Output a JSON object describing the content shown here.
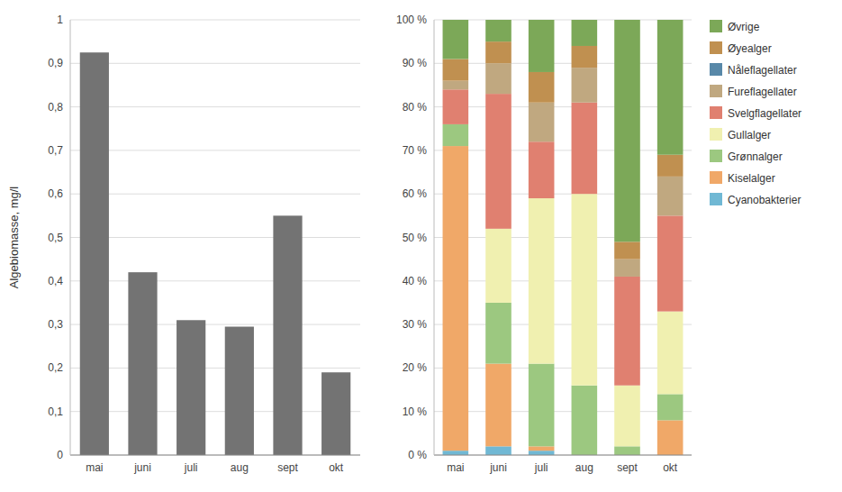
{
  "chart_data": [
    {
      "type": "bar",
      "ylabel": "Algebiomasse, mg/l",
      "categories": [
        "mai",
        "juni",
        "juli",
        "aug",
        "sept",
        "okt"
      ],
      "values": [
        0.925,
        0.42,
        0.31,
        0.295,
        0.55,
        0.19
      ],
      "color": "#737373",
      "ylim": [
        0,
        1
      ],
      "yticks": [
        0,
        {
          "value": 0.1,
          "label": "0,1"
        },
        {
          "value": 0.2,
          "label": "0,2"
        },
        {
          "value": 0.3,
          "label": "0,3"
        },
        {
          "value": 0.4,
          "label": "0,4"
        },
        {
          "value": 0.5,
          "label": "0,5"
        },
        {
          "value": 0.6,
          "label": "0,6"
        },
        {
          "value": 0.7,
          "label": "0,7"
        },
        {
          "value": 0.8,
          "label": "0,8"
        },
        {
          "value": 0.9,
          "label": "0,9"
        },
        1
      ],
      "grid": true
    },
    {
      "type": "bar",
      "stacked": true,
      "categories": [
        "mai",
        "juni",
        "juli",
        "aug",
        "sept",
        "okt"
      ],
      "series": [
        {
          "name": "Cyanobakterier",
          "color": "#70b8d4",
          "values": [
            1,
            2,
            1,
            0,
            0,
            0
          ]
        },
        {
          "name": "Kiselalger",
          "color": "#f0a868",
          "values": [
            70,
            19,
            1,
            0,
            0,
            8
          ]
        },
        {
          "name": "Grønnalger",
          "color": "#9cc880",
          "values": [
            5,
            14,
            19,
            16,
            2,
            6
          ]
        },
        {
          "name": "Gullalger",
          "color": "#f0f0b0",
          "values": [
            0,
            17,
            38,
            44,
            14,
            19
          ]
        },
        {
          "name": "Svelgflagellater",
          "color": "#e08070",
          "values": [
            8,
            31,
            13,
            21,
            25,
            22
          ]
        },
        {
          "name": "Fureflagellater",
          "color": "#c0a880",
          "values": [
            2,
            7,
            9,
            8,
            4,
            9
          ]
        },
        {
          "name": "Nåleflagellater",
          "color": "#5888a8",
          "values": [
            0,
            0,
            0,
            0,
            0,
            0
          ]
        },
        {
          "name": "Øyealger",
          "color": "#c09050",
          "values": [
            5,
            5,
            7,
            5,
            4,
            5
          ]
        },
        {
          "name": "Øvrige",
          "color": "#7ca858",
          "values": [
            9,
            5,
            12,
            6,
            51,
            31
          ]
        }
      ],
      "ylim": [
        0,
        100
      ],
      "yticks": [
        {
          "value": 0,
          "label": "0 %"
        },
        {
          "value": 10,
          "label": "10 %"
        },
        {
          "value": 20,
          "label": "20 %"
        },
        {
          "value": 30,
          "label": "30 %"
        },
        {
          "value": 40,
          "label": "40 %"
        },
        {
          "value": 50,
          "label": "50 %"
        },
        {
          "value": 60,
          "label": "60 %"
        },
        {
          "value": 70,
          "label": "70 %"
        },
        {
          "value": 80,
          "label": "80 %"
        },
        {
          "value": 90,
          "label": "90 %"
        },
        {
          "value": 100,
          "label": "100 %"
        }
      ],
      "grid": true,
      "legend": "right"
    }
  ]
}
